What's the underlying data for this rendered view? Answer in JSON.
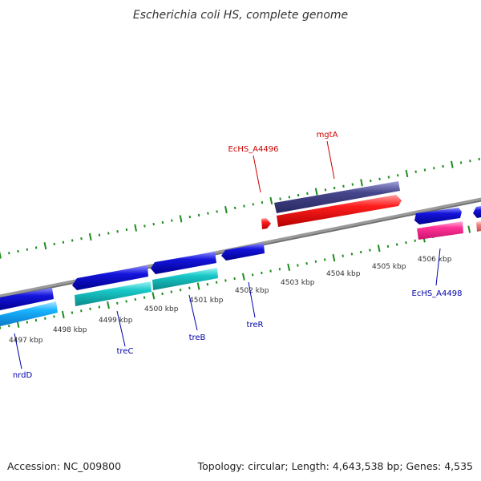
{
  "title": "Escherichia coli HS, complete genome",
  "accession": "Accession: NC_009800",
  "summary": "Topology: circular; Length: 4,643,538 bp; Genes: 4,535",
  "colors": {
    "background": "#ffffff",
    "backbone": "#8c8c8c",
    "ticks": "#1e8c1e",
    "gene_blue": "#1414dc",
    "gene_cyan": "#19c8c8",
    "gene_lightblue": "#19b4ff",
    "gene_red": "#ff1e1e",
    "gene_darkred": "#e60000",
    "gene_purple": "#46468c",
    "gene_pink": "#ff3296",
    "gene_salmon": "#f08080",
    "label_red": "#cc0000",
    "label_blue": "#0000aa"
  },
  "kbp_marks": [
    {
      "label": "4497 kbp"
    },
    {
      "label": "4498 kbp"
    },
    {
      "label": "4499 kbp"
    },
    {
      "label": "4500 kbp"
    },
    {
      "label": "4501 kbp"
    },
    {
      "label": "4502 kbp"
    },
    {
      "label": "4503 kbp"
    },
    {
      "label": "4504 kbp"
    },
    {
      "label": "4505 kbp"
    },
    {
      "label": "4506 kbp"
    }
  ],
  "gene_labels": {
    "ecHS_A4496": "EcHS_A4496",
    "mgtA": "mgtA",
    "ecHS_A4498": "EcHS_A4498",
    "treR": "treR",
    "treB": "treB",
    "treC": "treC",
    "nrdD": "nrdD"
  }
}
